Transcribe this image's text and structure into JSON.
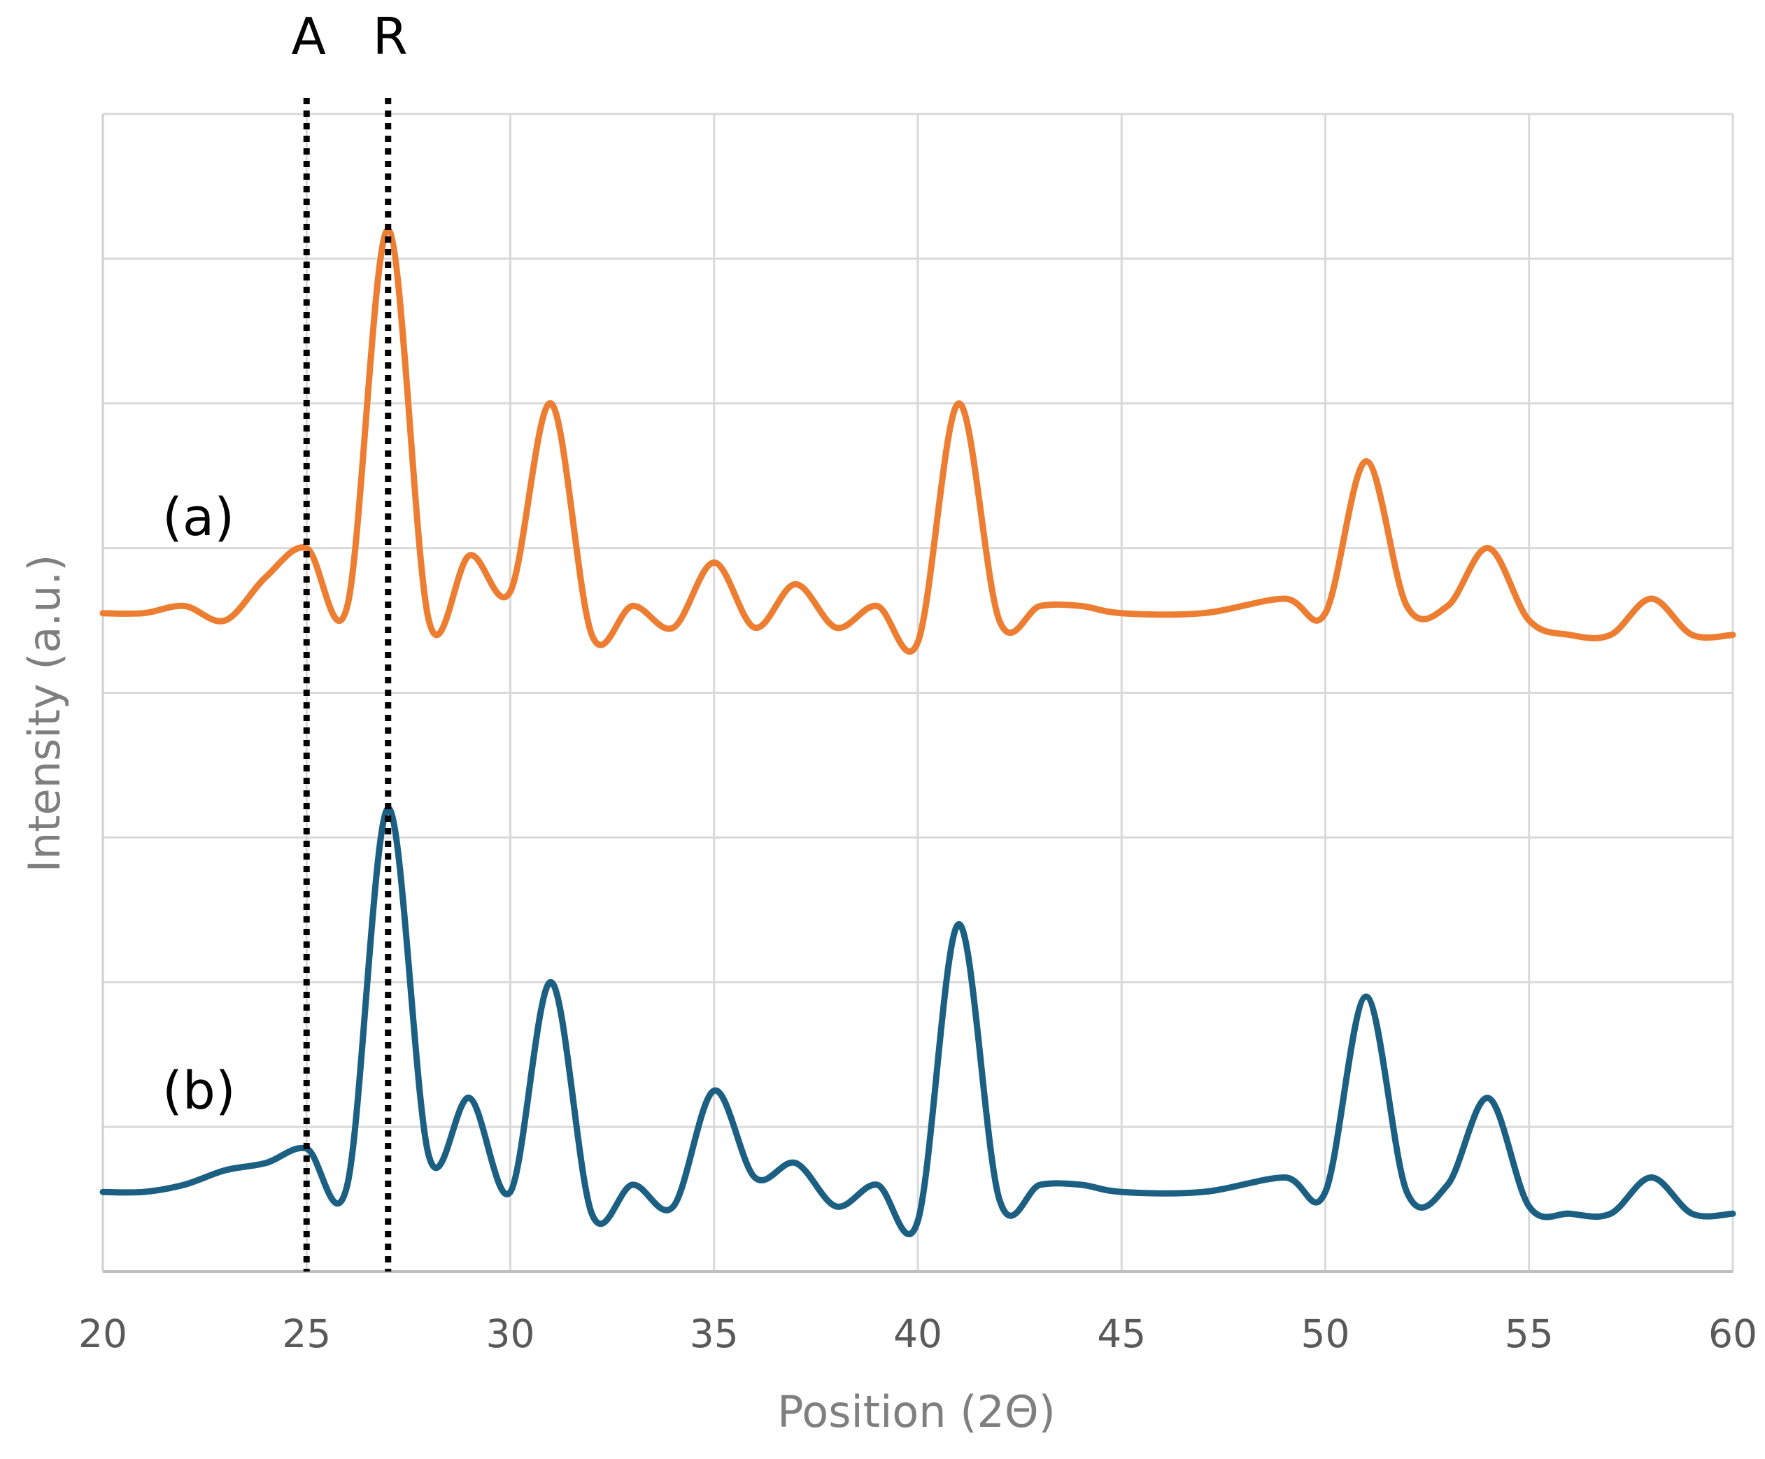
{
  "chart_data": {
    "type": "line",
    "title": "",
    "xlabel": "Position (2Θ)",
    "ylabel": "Intensity (a.u.)",
    "xlim": [
      20,
      60
    ],
    "ylim": [
      0,
      8
    ],
    "x_ticks": [
      "20",
      "25",
      "30",
      "35",
      "40",
      "45",
      "50",
      "55",
      "60"
    ],
    "y_ticks_labeled": false,
    "grid": true,
    "reference_lines": [
      {
        "label": "A",
        "x": 25,
        "style": "dotted",
        "color": "#000000"
      },
      {
        "label": "R",
        "x": 27,
        "style": "dotted",
        "color": "#000000"
      }
    ],
    "series": [
      {
        "name": "(a)",
        "color": "#ED7D31",
        "x": [
          20,
          21,
          22,
          23,
          24,
          25,
          26,
          27,
          28,
          29,
          30,
          31,
          32,
          33,
          34,
          35,
          36,
          37,
          38,
          39,
          40,
          41,
          42,
          43,
          44,
          45,
          47,
          49,
          50,
          51,
          52,
          53,
          54,
          55,
          56,
          57,
          58,
          59,
          60
        ],
        "y": [
          4.55,
          4.55,
          4.6,
          4.5,
          4.8,
          5.0,
          4.6,
          7.2,
          4.5,
          4.95,
          4.7,
          6.0,
          4.4,
          4.6,
          4.45,
          4.9,
          4.45,
          4.75,
          4.45,
          4.6,
          4.35,
          6.0,
          4.5,
          4.6,
          4.6,
          4.55,
          4.55,
          4.65,
          4.55,
          5.6,
          4.6,
          4.6,
          5.0,
          4.5,
          4.4,
          4.4,
          4.65,
          4.4,
          4.4
        ]
      },
      {
        "name": "(b)",
        "color": "#1B5F82",
        "x": [
          20,
          21,
          22,
          23,
          24,
          25,
          26,
          27,
          28,
          29,
          30,
          31,
          32,
          33,
          34,
          35,
          36,
          37,
          38,
          39,
          40,
          41,
          42,
          43,
          44,
          45,
          47,
          49,
          50,
          51,
          52,
          53,
          54,
          55,
          56,
          57,
          58,
          59,
          60
        ],
        "y": [
          0.55,
          0.55,
          0.6,
          0.7,
          0.75,
          0.85,
          0.6,
          3.2,
          0.8,
          1.2,
          0.55,
          2.0,
          0.4,
          0.6,
          0.45,
          1.25,
          0.65,
          0.75,
          0.45,
          0.6,
          0.35,
          2.4,
          0.5,
          0.6,
          0.6,
          0.55,
          0.55,
          0.65,
          0.55,
          1.9,
          0.55,
          0.6,
          1.2,
          0.45,
          0.4,
          0.4,
          0.65,
          0.4,
          0.4
        ]
      }
    ]
  }
}
